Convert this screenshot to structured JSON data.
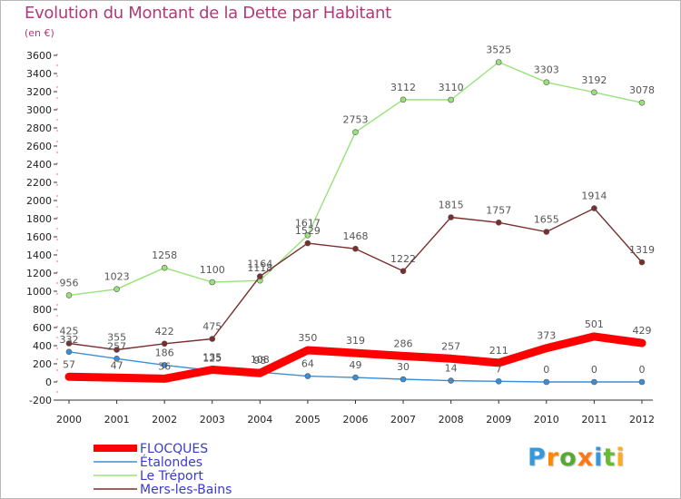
{
  "chart_data": {
    "type": "line",
    "title": "Evolution du Montant de la Dette par Habitant",
    "subtitle": "(en €)",
    "categories": [
      "2000",
      "2001",
      "2002",
      "2003",
      "2004",
      "2005",
      "2006",
      "2007",
      "2008",
      "2009",
      "2010",
      "2011",
      "2012"
    ],
    "ylim": [
      -200,
      3600
    ],
    "yticks": [
      -200,
      0,
      200,
      400,
      600,
      800,
      1000,
      1200,
      1400,
      1600,
      1800,
      2000,
      2200,
      2400,
      2600,
      2800,
      3000,
      3200,
      3400,
      3600
    ],
    "grid": false,
    "legend_position": "bottom-left",
    "series": [
      {
        "name": "FLOCQUES",
        "color": "#ff0000",
        "values": [
          57,
          47,
          36,
          135,
          98,
          350,
          319,
          286,
          257,
          211,
          373,
          501,
          429
        ]
      },
      {
        "name": "Étalondes",
        "color": "#3b8fd9",
        "values": [
          332,
          257,
          186,
          125,
          108,
          64,
          49,
          30,
          14,
          7,
          0,
          0,
          0
        ]
      },
      {
        "name": "Le Tréport",
        "color": "#99e27a",
        "values": [
          956,
          1023,
          1258,
          1100,
          1118,
          1617,
          2753,
          3112,
          3110,
          3525,
          3303,
          3192,
          3078
        ]
      },
      {
        "name": "Mers-les-Bains",
        "color": "#7a2e2e",
        "values": [
          425,
          355,
          422,
          475,
          1164,
          1529,
          1468,
          1222,
          1815,
          1757,
          1655,
          1914,
          1319
        ]
      }
    ]
  },
  "logo": {
    "letters": [
      "P",
      "r",
      "o",
      "x",
      "i",
      "t",
      "i"
    ],
    "colors": [
      "#3399dd",
      "#ff8800",
      "#55aa33",
      "#ff7711",
      "#3399dd",
      "#66bb33",
      "#ffaa22"
    ]
  }
}
